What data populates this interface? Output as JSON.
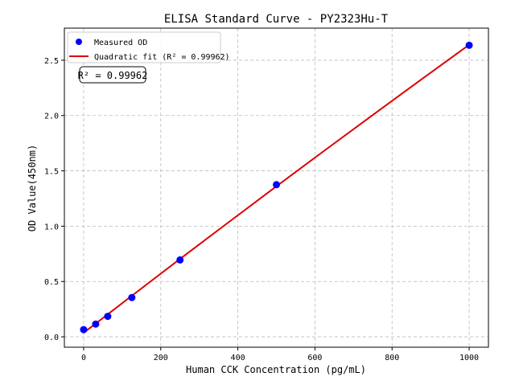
{
  "chart_data": {
    "type": "scatter",
    "title": "ELISA Standard Curve - PY2323Hu-T",
    "xlabel": "Human CCK Concentration (pg/mL)",
    "ylabel": "OD Value(450nm)",
    "xlim": [
      -50,
      1050
    ],
    "ylim": [
      -0.094,
      2.79
    ],
    "xticks": [
      0,
      200,
      400,
      600,
      800,
      1000
    ],
    "yticks": [
      0.0,
      0.5,
      1.0,
      1.5,
      2.0,
      2.5
    ],
    "xtick_labels": [
      "0",
      "200",
      "400",
      "600",
      "800",
      "1000"
    ],
    "ytick_labels": [
      "0.0",
      "0.5",
      "1.0",
      "1.5",
      "2.0",
      "2.5"
    ],
    "grid": true,
    "legend_position": "top-left",
    "series": [
      {
        "name": "Measured OD",
        "kind": "scatter",
        "color": "#0000ff",
        "x": [
          0,
          31.25,
          62.5,
          125,
          250,
          500,
          1000
        ],
        "y": [
          0.065,
          0.115,
          0.185,
          0.355,
          0.695,
          1.375,
          2.635
        ]
      },
      {
        "name": "Quadratic fit (R² = 0.99962)",
        "kind": "line",
        "color": "#dd0000",
        "x": [
          0,
          125,
          250,
          375,
          500,
          625,
          750,
          875,
          1000
        ],
        "y": [
          0.036,
          0.371,
          0.704,
          1.033,
          1.36,
          1.684,
          2.005,
          2.324,
          2.64
        ]
      }
    ],
    "annotation": "R² = 0.99962"
  }
}
